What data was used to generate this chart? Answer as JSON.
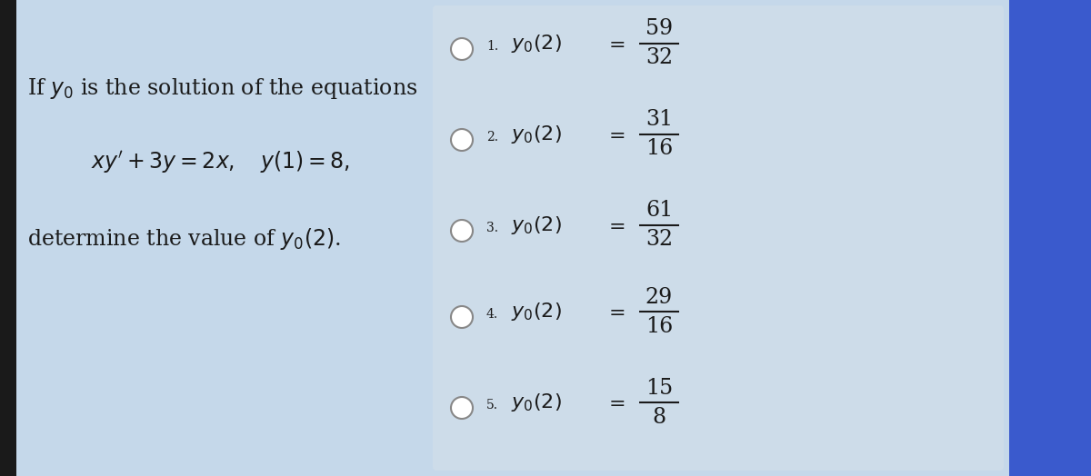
{
  "bg_color": "#c5d8ea",
  "right_panel_bg": "#cddce9",
  "blue_strip_color": "#3a5acd",
  "dark_left_strip": "#2a2a2a",
  "title_text": "If $y_0$ is the solution of the equations",
  "equation_text": "$xy' + 3y = 2x, \\quad y(1) = 8,$",
  "question_text": "determine the value of $y_0(2)$.",
  "options": [
    {
      "num": "1.",
      "frac_num": "59",
      "frac_den": "32"
    },
    {
      "num": "2.",
      "frac_num": "31",
      "frac_den": "16"
    },
    {
      "num": "3.",
      "frac_num": "61",
      "frac_den": "32"
    },
    {
      "num": "4.",
      "frac_num": "29",
      "frac_den": "16"
    },
    {
      "num": "5.",
      "frac_num": "15",
      "frac_den": "8"
    }
  ],
  "figsize": [
    12.0,
    5.24
  ],
  "dpi": 100,
  "text_color": "#1a1a1a"
}
